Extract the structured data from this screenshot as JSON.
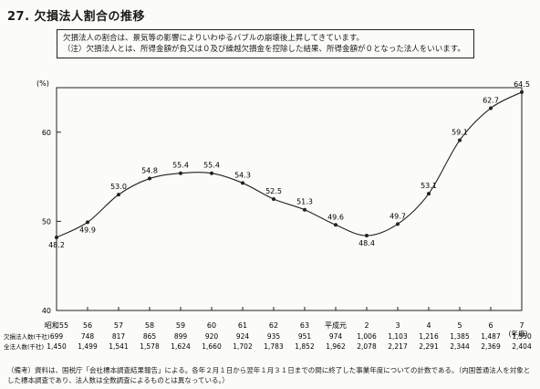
{
  "page": {
    "title": "27. 欠損法人割合の推移",
    "note_line1": "欠損法人の割合は、景気等の影響によりいわゆるバブルの崩壊後上昇してきています。",
    "note_line2": "（注）欠損法人とは、所得金額が負又は０及び繰越欠損金を控除した結果、所得金額が０となった法人をいいます。",
    "footnote": "（備考）資料は、国税庁「会社標本調査結果報告」による。各年２月１日から翌年１月３１日までの間に終了した事業年度についての計数である。（内国普通法人を対象とした標本調査であり、法人数は全数調査によるものとは異なっている。）"
  },
  "chart_data": {
    "type": "line",
    "ylabel": "(%)",
    "xlabel": "(年度)",
    "ylim": [
      40,
      65
    ],
    "yticks": [
      "40",
      "50",
      "60"
    ],
    "categories": [
      "昭和55",
      "56",
      "57",
      "58",
      "59",
      "60",
      "61",
      "62",
      "63",
      "平成元",
      "2",
      "3",
      "4",
      "5",
      "6",
      "7"
    ],
    "values": [
      48.2,
      49.9,
      53.0,
      54.8,
      55.4,
      55.4,
      54.3,
      52.5,
      51.3,
      49.6,
      48.4,
      49.7,
      53.1,
      59.1,
      62.7,
      64.5
    ],
    "value_labels": [
      "48.2",
      "49.9",
      "53.0",
      "54.8",
      "55.4",
      "55.4",
      "54.3",
      "52.5",
      "51.3",
      "49.6",
      "48.4",
      "49.7",
      "53.1",
      "59.1",
      "62.7",
      "64.5"
    ],
    "table_rows": [
      {
        "label": "欠損法人数(千社)",
        "values": [
          "699",
          "748",
          "817",
          "865",
          "899",
          "920",
          "924",
          "935",
          "951",
          "974",
          "1,006",
          "1,103",
          "1,216",
          "1,385",
          "1,487",
          "1,550"
        ]
      },
      {
        "label": "全法人数(千社)",
        "values": [
          "1,450",
          "1,499",
          "1,541",
          "1,578",
          "1,624",
          "1,660",
          "1,702",
          "1,783",
          "1,852",
          "1,962",
          "2,078",
          "2,217",
          "2,291",
          "2,344",
          "2,369",
          "2,404"
        ]
      }
    ]
  }
}
